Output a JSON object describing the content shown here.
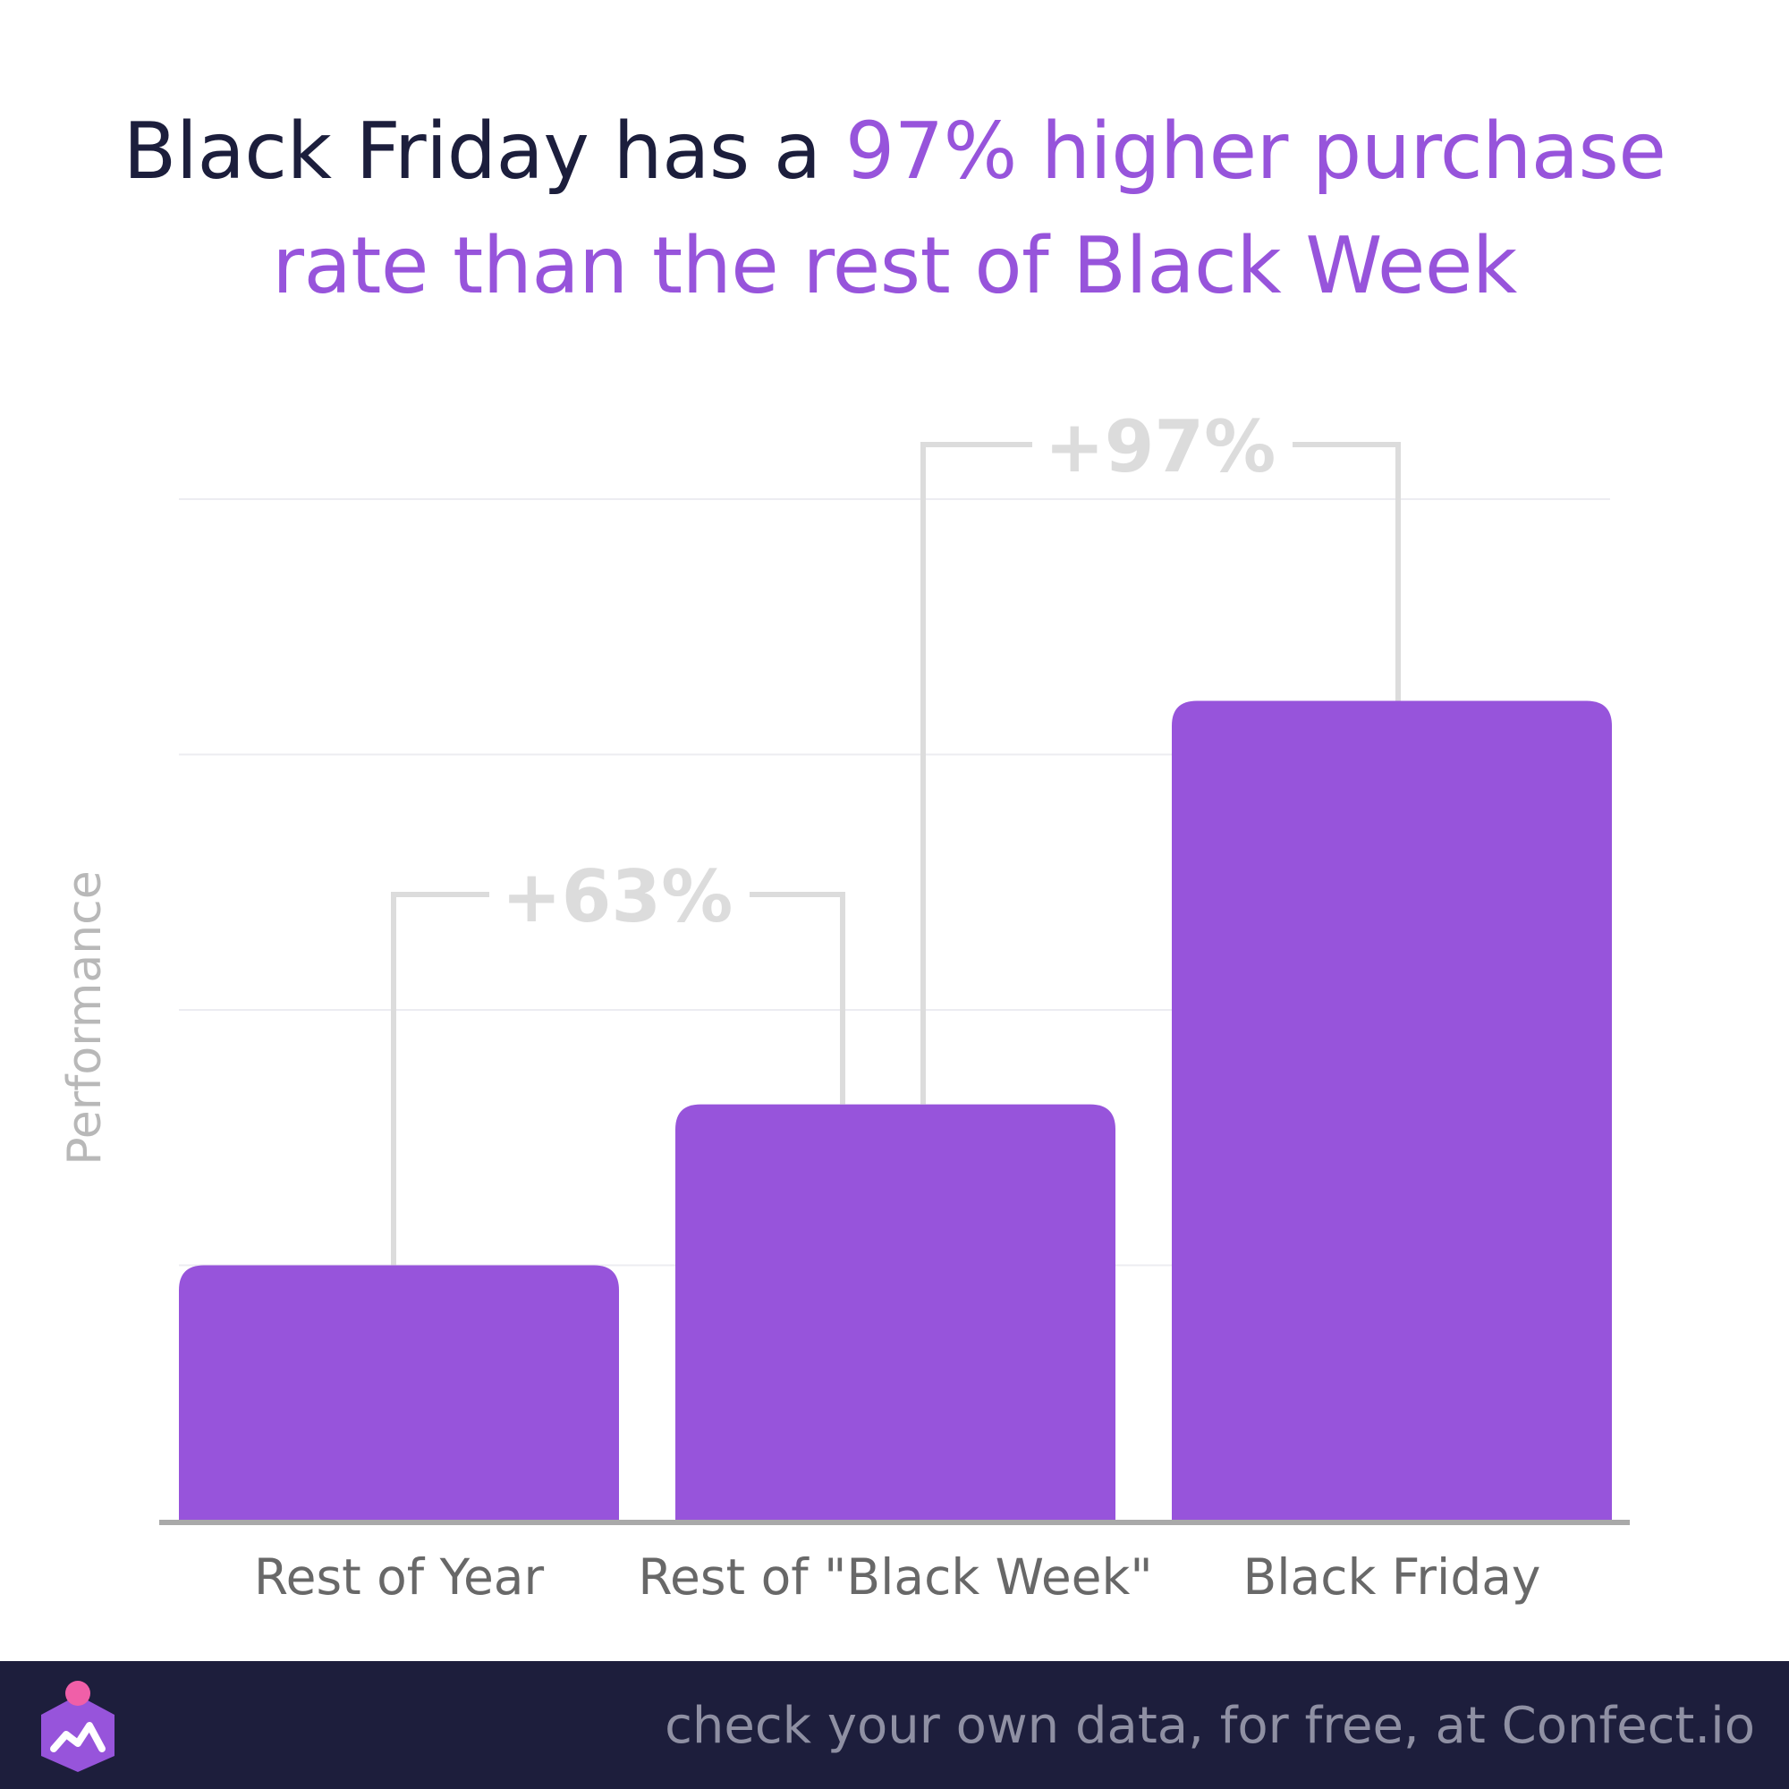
{
  "title": {
    "part1": "Black Friday has a ",
    "part2": "97% higher purchase rate than the rest of Black Week"
  },
  "colors": {
    "bar": "#9754db",
    "title_dark": "#1c1e3c",
    "gridline": "#ececf1",
    "bracket": "#dcdcdc",
    "axis": "#a9a9a9",
    "footer_bg": "#1d1e3c"
  },
  "chart_data": {
    "type": "bar",
    "categories": [
      "Rest of Year",
      "Rest of \"Black Week\"",
      "Black Friday"
    ],
    "values": [
      1.0,
      1.63,
      3.21
    ],
    "ylabel": "Performance",
    "ylim": [
      0,
      4
    ],
    "grid": true,
    "annotations": [
      {
        "label": "+63%",
        "from": 0,
        "to": 1
      },
      {
        "label": "+97%",
        "from": 1,
        "to": 2
      }
    ]
  },
  "footer": {
    "text": "check your own data, for free, at Confect.io",
    "logo": "confect-logo-icon"
  }
}
